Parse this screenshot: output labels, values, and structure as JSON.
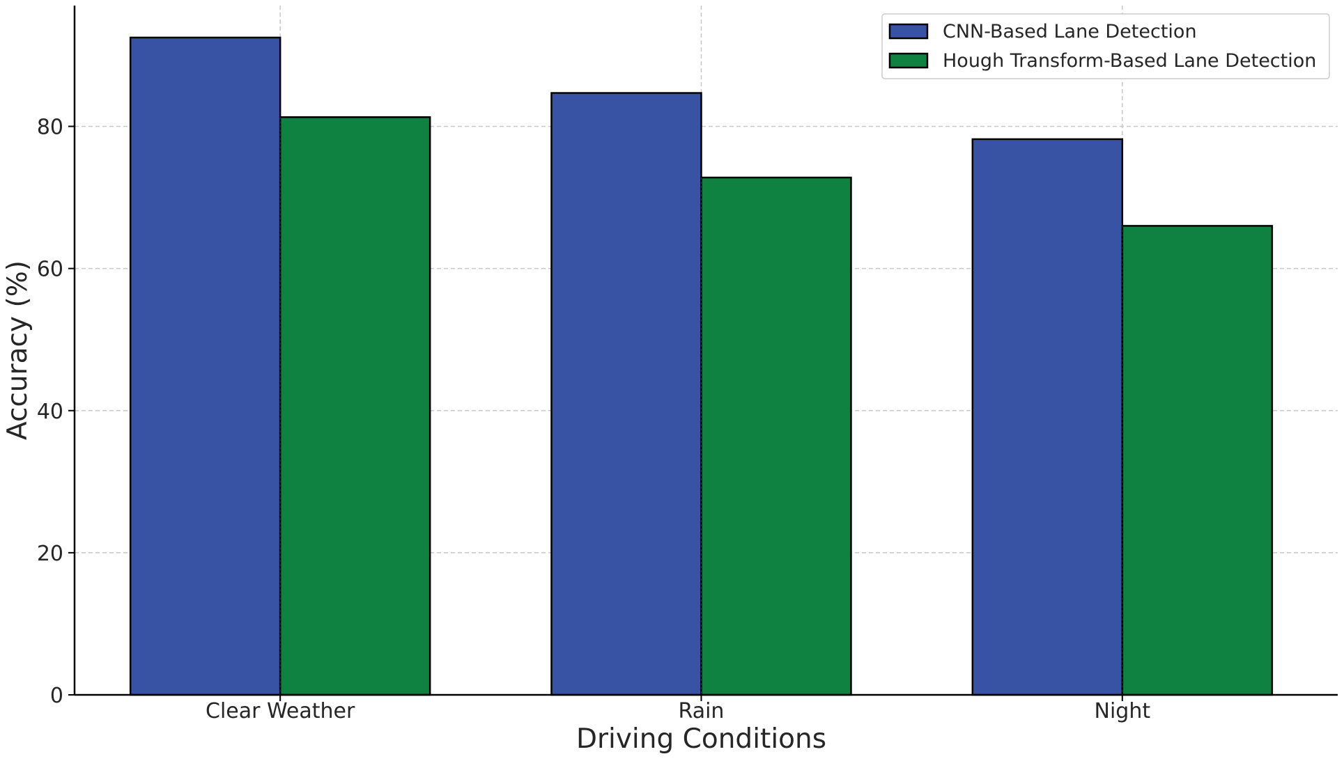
{
  "chart_data": {
    "type": "bar",
    "categories": [
      "Clear Weather",
      "Rain",
      "Night"
    ],
    "series": [
      {
        "name": "CNN-Based Lane Detection",
        "values": [
          92.5,
          84.7,
          78.2
        ],
        "color": "#3953a4"
      },
      {
        "name": "Hough Transform-Based Lane Detection",
        "values": [
          81.3,
          72.8,
          66.0
        ],
        "color": "#0f8140"
      }
    ],
    "title": "",
    "xlabel": "Driving Conditions",
    "ylabel": "Accuracy (%)",
    "ylim": [
      0,
      97
    ],
    "yticks": [
      0,
      20,
      40,
      60,
      80
    ],
    "grid": true,
    "legend_position": "top-right"
  }
}
